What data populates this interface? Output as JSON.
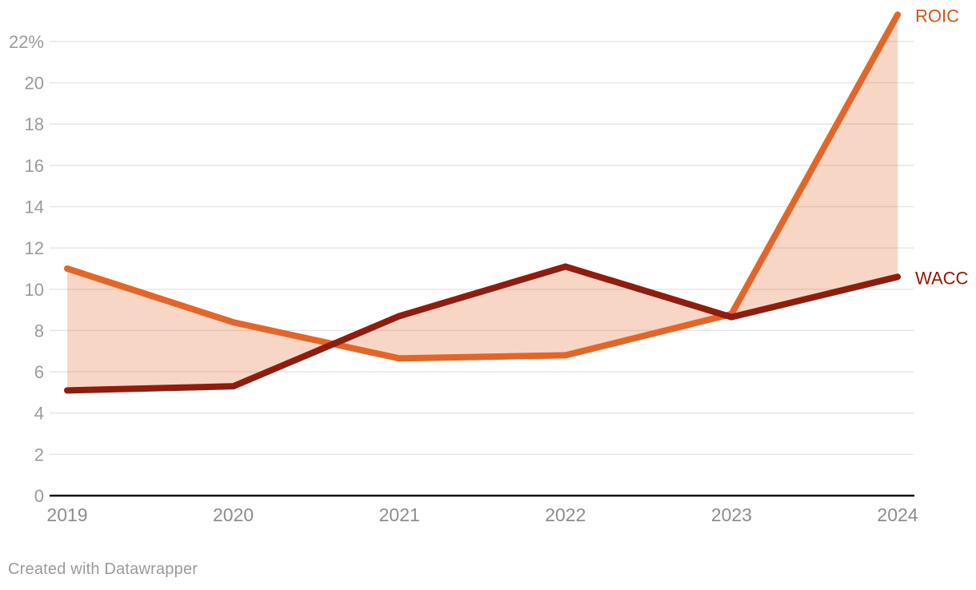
{
  "chart_data": {
    "type": "line",
    "title": "",
    "xlabel": "",
    "ylabel": "",
    "categories": [
      "2019",
      "2020",
      "2021",
      "2022",
      "2023",
      "2024"
    ],
    "series": [
      {
        "name": "ROIC",
        "values": [
          11.0,
          8.4,
          6.65,
          6.8,
          8.8,
          23.3
        ],
        "line_color": "#e2662a",
        "label_color": "#cf5616"
      },
      {
        "name": "WACC",
        "values": [
          5.1,
          5.3,
          8.7,
          11.1,
          8.65,
          10.6
        ],
        "line_color": "#8e1d0e",
        "label_color": "#931508"
      }
    ],
    "fill_between": {
      "color": "#e0662d",
      "opacity": 0.27
    },
    "ylim": [
      0,
      23.5
    ],
    "yticks": [
      0,
      2,
      4,
      6,
      8,
      10,
      12,
      14,
      16,
      18,
      20,
      22
    ],
    "ytick_labels": [
      "0",
      "2",
      "4",
      "6",
      "8",
      "10",
      "12",
      "14",
      "16",
      "18",
      "20",
      "22%"
    ],
    "grid": true,
    "legend_position": "right-of-line-ends",
    "axis_colors": {
      "gridline": "#e4e4e4",
      "baseline": "#141414",
      "ytick_text": "#9b9b9b",
      "xtick_text": "#8d8d8d"
    }
  },
  "footer": {
    "credit": "Created with Datawrapper"
  }
}
